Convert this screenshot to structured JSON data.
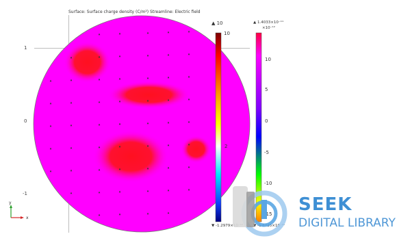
{
  "title": "Surface: Surface charge density (C/m²)   Streamline: Electric field",
  "y_ticks": [
    "1",
    "0",
    "-1"
  ],
  "triad": {
    "y": "y",
    "x": "x"
  },
  "colorbar_left": {
    "top_value": "▲ 10",
    "tick_top": "10",
    "ticks_mid": [
      "2"
    ],
    "bottom_value": "▼ -1.2979×10⁻¹²"
  },
  "colorbar_right": {
    "max_value": "▲ 1.4033×10⁻¹¹",
    "exponent": "×10⁻¹²",
    "ticks": [
      "10",
      "5",
      "0",
      "-5",
      "-10",
      "-15"
    ],
    "min_value": "▼ -1.6735×10⁻¹¹"
  },
  "watermark": {
    "brand": "SEEK",
    "subtitle": "DIGITAL LIBRARY"
  },
  "colors": {
    "magenta": "#ff00ff",
    "hot_red": "#ff1020",
    "watermark_blue": "#3e8fd4"
  },
  "chart_data": {
    "type": "heatmap",
    "title": "Surface: Surface charge density (C/m²)   Streamline: Electric field",
    "yticks": [
      1,
      0,
      -1
    ],
    "colorscale_range": [
      -1.6735e-11,
      1.4033e-11
    ],
    "hot_spots": [
      {
        "x": -0.75,
        "y": 0.85
      },
      {
        "x": 0.1,
        "y": 0.4
      },
      {
        "x": -0.15,
        "y": -0.45
      },
      {
        "x": 0.75,
        "y": -0.35
      }
    ]
  }
}
